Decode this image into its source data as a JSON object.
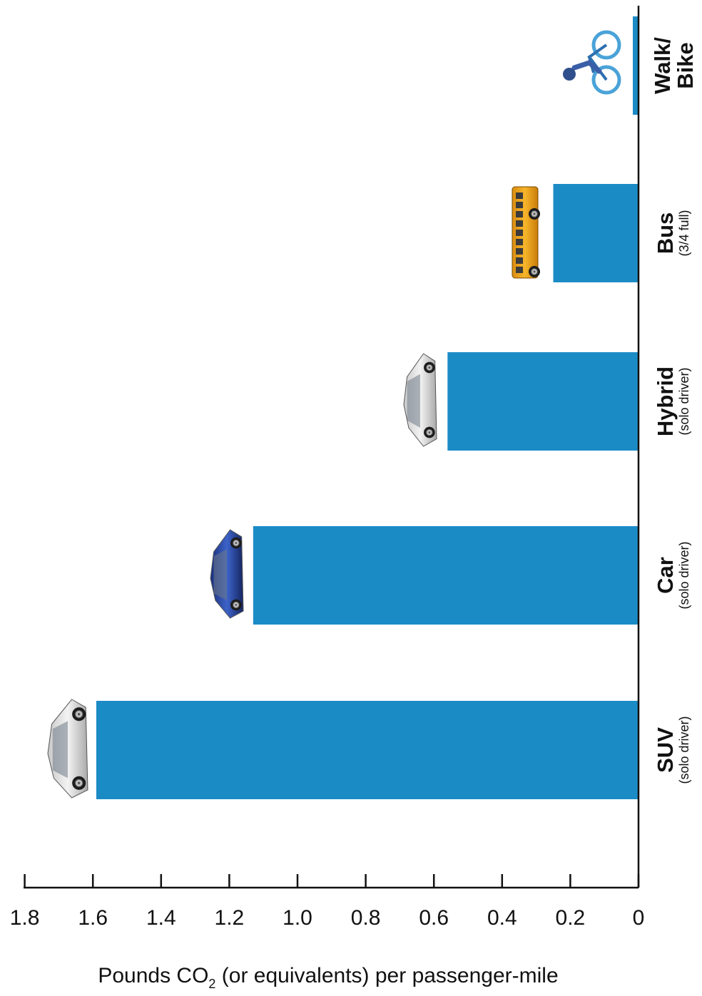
{
  "chart_data": {
    "type": "bar",
    "orientation": "horizontal",
    "categories": [
      {
        "label": "SUV",
        "sublabel": "(solo driver)"
      },
      {
        "label": "Car",
        "sublabel": "(solo driver)"
      },
      {
        "label": "Hybrid",
        "sublabel": "(solo driver)"
      },
      {
        "label": "Bus",
        "sublabel": "(3/4 full)"
      },
      {
        "label": "Walk/ Bike",
        "sublabel": ""
      }
    ],
    "values": [
      1.59,
      1.13,
      0.56,
      0.25,
      0.01
    ],
    "xlim": [
      1.8,
      0
    ],
    "x_ticks": [
      "1.8",
      "1.6",
      "1.4",
      "1.2",
      "1.0",
      "0.8",
      "0.6",
      "0.4",
      "0.2",
      "0"
    ],
    "x_tick_values": [
      1.8,
      1.6,
      1.4,
      1.2,
      1.0,
      0.8,
      0.6,
      0.4,
      0.2,
      0
    ],
    "xlabel": {
      "main": "Pounds CO",
      "sub": "2",
      "rest": " (or equivalents) per passenger-mile"
    },
    "bar_color": "#1b8bc6",
    "vehicle_icons": [
      "suv-icon",
      "car-icon",
      "hybrid-car-icon",
      "bus-icon",
      "bicycle-icon"
    ]
  }
}
